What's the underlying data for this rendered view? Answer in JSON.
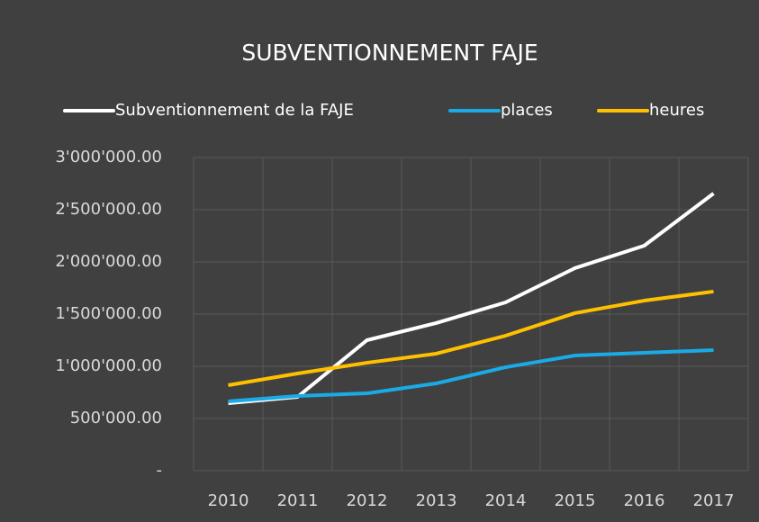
{
  "chart_data": {
    "type": "line",
    "title": "SUBVENTIONNEMENT FAJE",
    "categories": [
      "2010",
      "2011",
      "2012",
      "2013",
      "2014",
      "2015",
      "2016",
      "2017"
    ],
    "series": [
      {
        "name": "Subventionnement de la FAJE",
        "color": "#ffffff",
        "values": [
          646000,
          707000,
          1250000,
          1414000,
          1612000,
          1940000,
          2155000,
          2655000
        ]
      },
      {
        "name": "places",
        "color": "#1aabe6",
        "values": [
          664000,
          716000,
          741000,
          836000,
          991000,
          1103000,
          1129000,
          1155000
        ]
      },
      {
        "name": "heures",
        "color": "#ffc000",
        "values": [
          819000,
          931000,
          1034000,
          1121000,
          1293000,
          1509000,
          1629000,
          1716000
        ]
      }
    ],
    "ylim": [
      0,
      3000000
    ],
    "yticks": [
      {
        "value": 0,
        "label": "-"
      },
      {
        "value": 500000,
        "label": "500'000.00"
      },
      {
        "value": 1000000,
        "label": "1'000'000.00"
      },
      {
        "value": 1500000,
        "label": "1'500'000.00"
      },
      {
        "value": 2000000,
        "label": "2'000'000.00"
      },
      {
        "value": 2500000,
        "label": "2'500'000.00"
      },
      {
        "value": 3000000,
        "label": "3'000'000.00"
      }
    ],
    "grid": true,
    "legend": "top"
  }
}
